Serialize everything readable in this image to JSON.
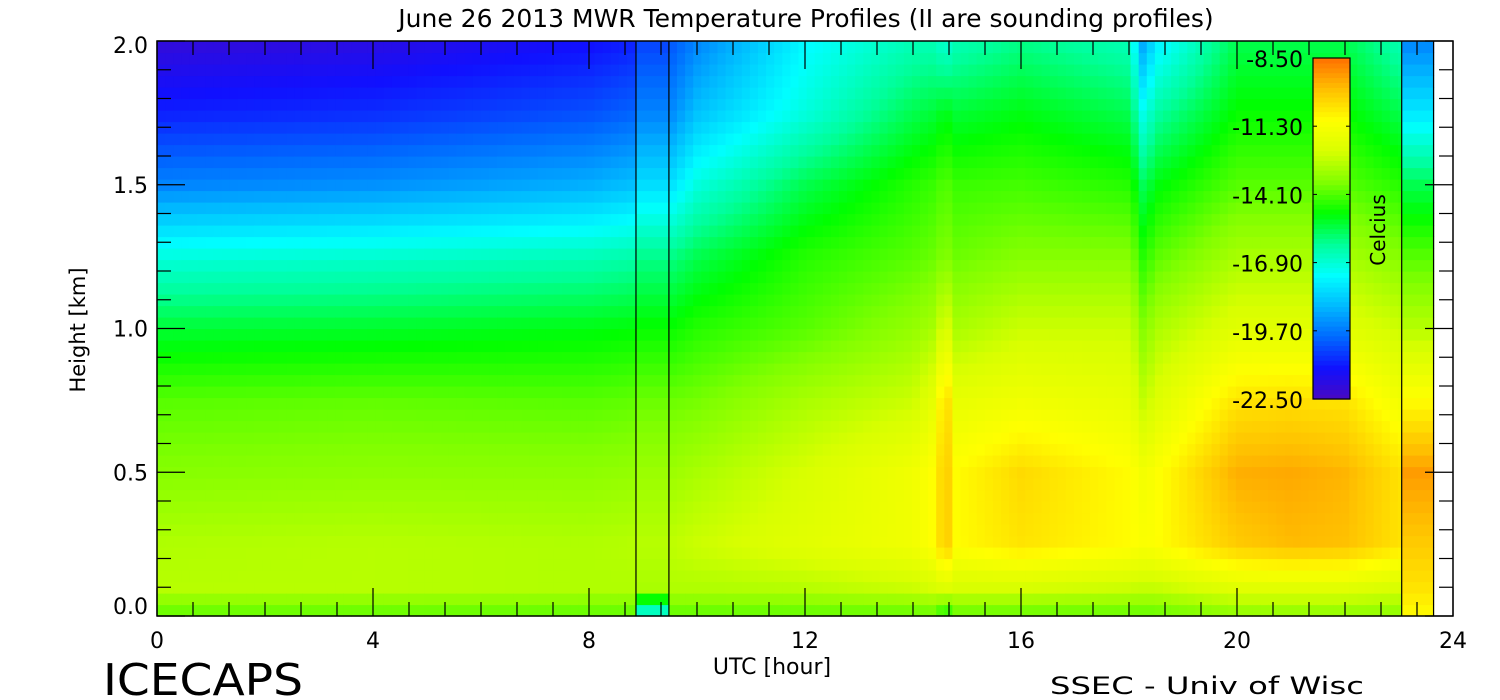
{
  "chart_data": {
    "type": "heatmap",
    "title": "June 26 2013 MWR Temperature Profiles (II are sounding profiles)",
    "xlabel": "UTC [hour]",
    "ylabel": "Height [km]",
    "xlim": [
      0,
      24
    ],
    "ylim": [
      0,
      2.0
    ],
    "x_ticks": [
      "0",
      "4",
      "8",
      "12",
      "16",
      "20",
      "24"
    ],
    "y_ticks": [
      "0.0",
      "0.5",
      "1.0",
      "1.5",
      "2.0"
    ],
    "colorbar": {
      "label": "Celcius",
      "range": [
        -22.5,
        -8.5
      ],
      "ticks": [
        "-8.50",
        "-11.30",
        "-14.10",
        "-16.90",
        "-19.70",
        "-22.50"
      ],
      "colors": [
        "#4a08c0",
        "#1010ff",
        "#0068ff",
        "#00b8ff",
        "#00ffff",
        "#00ff9a",
        "#00ff00",
        "#80ff00",
        "#d8ff00",
        "#ffff00",
        "#ffc000",
        "#ff7000"
      ]
    },
    "heights_km": [
      0,
      0.1,
      0.25,
      0.5,
      0.75,
      1.0,
      1.25,
      1.5,
      1.75,
      2.0
    ],
    "mwr_profiles": [
      {
        "time": 0,
        "temps": [
          -14,
          -12.8,
          -12.9,
          -13.5,
          -14.0,
          -15.3,
          -17.0,
          -19.5,
          -21.0,
          -22.0
        ]
      },
      {
        "time": 4,
        "temps": [
          -14,
          -12.8,
          -12.8,
          -13.4,
          -13.9,
          -15.2,
          -16.8,
          -19.3,
          -20.8,
          -21.8
        ]
      },
      {
        "time": 8,
        "temps": [
          -14,
          -12.9,
          -12.9,
          -13.4,
          -14.0,
          -15.0,
          -16.5,
          -18.8,
          -20.3,
          -21.3
        ]
      },
      {
        "time": 8.87,
        "temps": [
          -14,
          -12.9,
          -12.8,
          -13.3,
          -13.9,
          -14.9,
          -16.3,
          -18.5,
          -20.0,
          -21.0
        ]
      },
      {
        "time": 9.48,
        "temps": [
          -14,
          -12.9,
          -12.7,
          -13.2,
          -13.8,
          -14.8,
          -16.0,
          -18.0,
          -19.5,
          -20.3
        ]
      },
      {
        "time": 10,
        "temps": [
          -14,
          -12.9,
          -12.5,
          -13.0,
          -13.7,
          -14.5,
          -15.5,
          -17.0,
          -18.5,
          -19.5
        ]
      },
      {
        "time": 12,
        "temps": [
          -14,
          -12.8,
          -12.0,
          -12.3,
          -13.0,
          -14.0,
          -14.5,
          -15.5,
          -17.0,
          -17.5
        ]
      },
      {
        "time": 14,
        "temps": [
          -14,
          -12.5,
          -11.5,
          -11.5,
          -12.5,
          -13.3,
          -14.0,
          -14.5,
          -15.5,
          -16.5
        ]
      },
      {
        "time": 14.4,
        "temps": [
          -14,
          -12.3,
          -11.0,
          -11.0,
          -11.8,
          -13.0,
          -13.8,
          -14.3,
          -15.3,
          -16.5
        ]
      },
      {
        "time": 14.6,
        "temps": [
          -15,
          -12.0,
          -9.8,
          -9.8,
          -10.0,
          -12.0,
          -13.5,
          -14.0,
          -15.0,
          -17.0
        ]
      },
      {
        "time": 14.8,
        "temps": [
          -14,
          -12.3,
          -11.0,
          -11.0,
          -11.8,
          -13.0,
          -13.8,
          -14.3,
          -15.3,
          -16.5
        ]
      },
      {
        "time": 16,
        "temps": [
          -14,
          -12.3,
          -10.5,
          -10.3,
          -11.5,
          -12.5,
          -13.5,
          -14.2,
          -15.0,
          -16.0
        ]
      },
      {
        "time": 18,
        "temps": [
          -14,
          -12.5,
          -11.0,
          -11.0,
          -11.8,
          -12.5,
          -13.5,
          -14.5,
          -15.5,
          -16.5
        ]
      },
      {
        "time": 18.15,
        "temps": [
          -14,
          -12.6,
          -11.1,
          -11.2,
          -12.2,
          -13.0,
          -14.0,
          -15.0,
          -16.3,
          -17.8
        ]
      },
      {
        "time": 18.3,
        "temps": [
          -14,
          -12.6,
          -11.2,
          -11.5,
          -12.8,
          -13.7,
          -14.7,
          -15.8,
          -17.5,
          -19.5
        ]
      },
      {
        "time": 18.45,
        "temps": [
          -14,
          -12.6,
          -11.1,
          -11.2,
          -12.2,
          -13.0,
          -14.0,
          -15.0,
          -16.3,
          -17.8
        ]
      },
      {
        "time": 20,
        "temps": [
          -13.5,
          -12.0,
          -10.0,
          -9.5,
          -10.5,
          -12.0,
          -13.0,
          -14.0,
          -14.8,
          -15.5
        ]
      },
      {
        "time": 21,
        "temps": [
          -13.5,
          -12.0,
          -9.7,
          -9.4,
          -10.4,
          -12.0,
          -13.0,
          -14.0,
          -14.8,
          -15.5
        ]
      },
      {
        "time": 22,
        "temps": [
          -13.5,
          -12.0,
          -9.8,
          -9.6,
          -10.5,
          -12.0,
          -13.0,
          -14.0,
          -14.8,
          -15.5
        ]
      },
      {
        "time": 23.05,
        "temps": [
          -13.5,
          -12.3,
          -10.5,
          -10.5,
          -11.5,
          -12.5,
          -13.5,
          -14.5,
          -15.5,
          -16.5
        ]
      }
    ],
    "sounding_profiles": [
      {
        "start": 8.87,
        "end": 9.48,
        "temps": [
          -17.5,
          -13.0,
          -12.8,
          -13.2,
          -13.8,
          -14.8,
          -16.0,
          -18.0,
          -19.5,
          -20.5
        ]
      },
      {
        "start": 23.05,
        "end": 23.64,
        "temps": [
          -11.0,
          -10.5,
          -10.0,
          -9.2,
          -11.0,
          -12.8,
          -14.0,
          -15.5,
          -17.8,
          -19.5
        ]
      }
    ]
  },
  "footer": {
    "logo_text": "ICECAPS",
    "credit": "SSEC - Univ of Wisc"
  }
}
